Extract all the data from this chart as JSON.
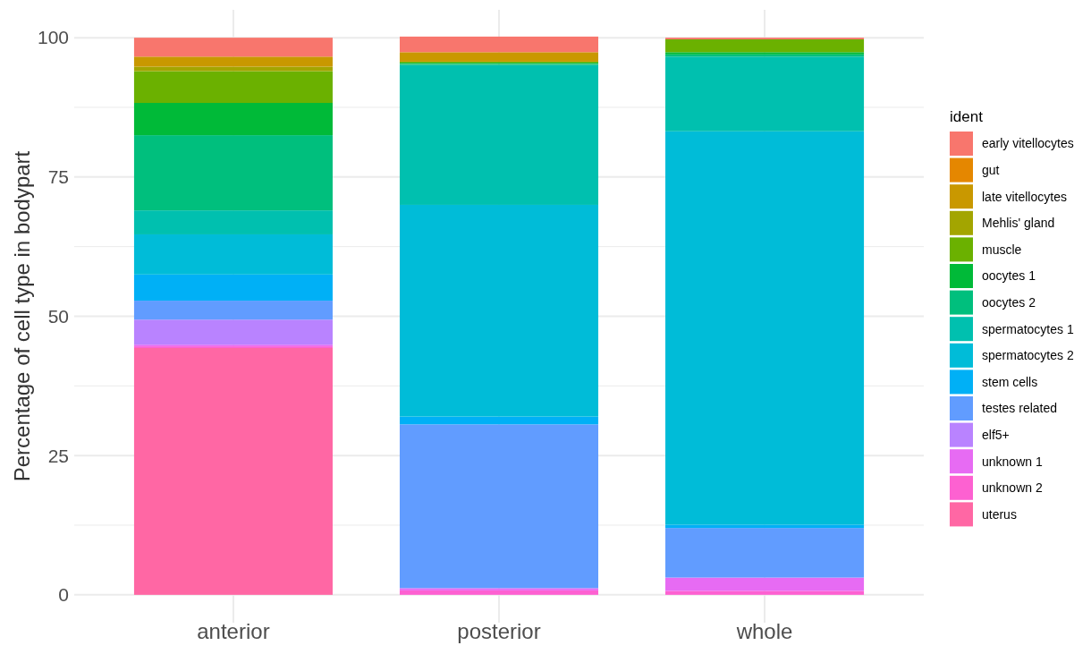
{
  "chart_data": {
    "type": "bar",
    "stacked": true,
    "ylabel": "Percentage of cell type in bodypart",
    "legend_title": "ident",
    "legend": "right",
    "grid": true,
    "categories": [
      "anterior",
      "posterior",
      "whole"
    ],
    "ylim": [
      -5,
      105
    ],
    "yticks": [
      0,
      {
        "value": 12.5,
        "label": null
      },
      25,
      {
        "value": 37.5,
        "label": null
      },
      50,
      {
        "value": 62.5,
        "label": null
      },
      75,
      {
        "value": 87.5,
        "label": null
      },
      100
    ],
    "series": [
      {
        "name": "uterus",
        "color": "#ff67a4",
        "values": [
          44.3,
          0,
          0
        ]
      },
      {
        "name": "unknown 2",
        "color": "#fd61d1",
        "values": [
          0.3,
          0.8,
          0.7
        ]
      },
      {
        "name": "unknown 1",
        "color": "#e76bf3",
        "values": [
          0.3,
          0.4,
          2.4
        ]
      },
      {
        "name": "elf5+",
        "color": "#b983ff",
        "values": [
          4.5,
          0,
          0
        ]
      },
      {
        "name": "testes related",
        "color": "#619cff",
        "values": [
          3.4,
          29.4,
          8.9
        ]
      },
      {
        "name": "stem cells",
        "color": "#00b0f6",
        "values": [
          4.7,
          1.4,
          0.6
        ]
      },
      {
        "name": "spermatocytes 2",
        "color": "#00bcd8",
        "values": [
          7.2,
          38.0,
          70.6
        ]
      },
      {
        "name": "spermatocytes 1",
        "color": "#00c0af",
        "values": [
          4.3,
          25.1,
          13.4
        ]
      },
      {
        "name": "oocytes 2",
        "color": "#00bf7d",
        "values": [
          13.5,
          0.2,
          0.4
        ]
      },
      {
        "name": "oocytes 1",
        "color": "#00ba38",
        "values": [
          5.8,
          0.2,
          0.4
        ]
      },
      {
        "name": "muscle",
        "color": "#6bb100",
        "values": [
          5.7,
          0.2,
          2.3
        ]
      },
      {
        "name": "Mehlis' gland",
        "color": "#a3a500",
        "values": [
          0.8,
          0,
          0
        ]
      },
      {
        "name": "late vitellocytes",
        "color": "#c99800",
        "values": [
          1.8,
          1.7,
          0
        ]
      },
      {
        "name": "gut",
        "color": "#e58700",
        "values": [
          0,
          0,
          0
        ]
      },
      {
        "name": "early vitellocytes",
        "color": "#f8766d",
        "values": [
          3.4,
          2.8,
          0.3
        ]
      }
    ]
  }
}
